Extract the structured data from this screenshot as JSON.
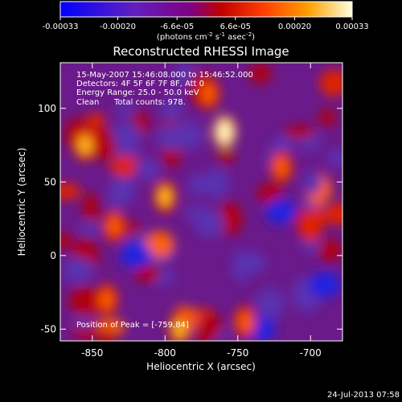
{
  "colorbar": {
    "tick_labels": [
      "-0.00033",
      "-0.00020",
      "-6.6e-05",
      "6.6e-05",
      "0.00020",
      "0.00033"
    ],
    "units_main": "(photons cm",
    "units_exp1": "-2",
    "units_mid1": " s",
    "units_exp2": "-1",
    "units_mid2": " asec",
    "units_exp3": "-2",
    "units_end": ")",
    "range": [
      -0.00033,
      0.00033
    ]
  },
  "chart_data": {
    "type": "heatmap",
    "title": "Reconstructed RHESSI Image",
    "xlabel": "Heliocentric X (arcsec)",
    "ylabel": "Heliocentric Y (arcsec)",
    "xlim": [
      -872,
      -678
    ],
    "ylim": [
      -58,
      131
    ],
    "xticks": [
      -850,
      -800,
      -750,
      -700
    ],
    "yticks": [
      -50,
      0,
      50,
      100
    ],
    "colormap": "blue-purple-red-orange-yellow-white",
    "peak": [
      -759,
      84
    ],
    "bright_regions": [
      {
        "x": -759,
        "y": 84,
        "level": 1.0
      },
      {
        "x": -800,
        "y": 40,
        "level": 0.85
      },
      {
        "x": -855,
        "y": 75,
        "level": 0.8
      },
      {
        "x": -770,
        "y": 110,
        "level": 0.75
      },
      {
        "x": -790,
        "y": -50,
        "level": 0.8
      },
      {
        "x": -745,
        "y": -45,
        "level": 0.7
      },
      {
        "x": -720,
        "y": 60,
        "level": 0.7
      },
      {
        "x": -840,
        "y": -30,
        "level": 0.65
      },
      {
        "x": -700,
        "y": 20,
        "level": 0.6
      },
      {
        "x": -835,
        "y": 20,
        "level": 0.65
      }
    ],
    "dark_regions": [
      {
        "x": -735,
        "y": -50,
        "level": -0.8
      },
      {
        "x": -820,
        "y": 0,
        "level": -0.7
      },
      {
        "x": -720,
        "y": 30,
        "level": -0.6
      },
      {
        "x": -795,
        "y": 80,
        "level": -0.5
      },
      {
        "x": -690,
        "y": -20,
        "level": -0.7
      },
      {
        "x": -860,
        "y": -10,
        "level": -0.5
      }
    ],
    "annotations": {
      "time_range": "15-May-2007 15:46:08.000 to 15:46:52.000",
      "detectors": "Detectors: 4F 5F 6F 7F 8F, Att 0",
      "energy": "Energy Range: 25.0 - 50.0 keV",
      "clean": "Clean",
      "counts": "Total counts: 978.",
      "peak_label": "Position of Peak = [-759,84]"
    }
  },
  "footer": {
    "timestamp": "24-Jul-2013 07:58"
  }
}
